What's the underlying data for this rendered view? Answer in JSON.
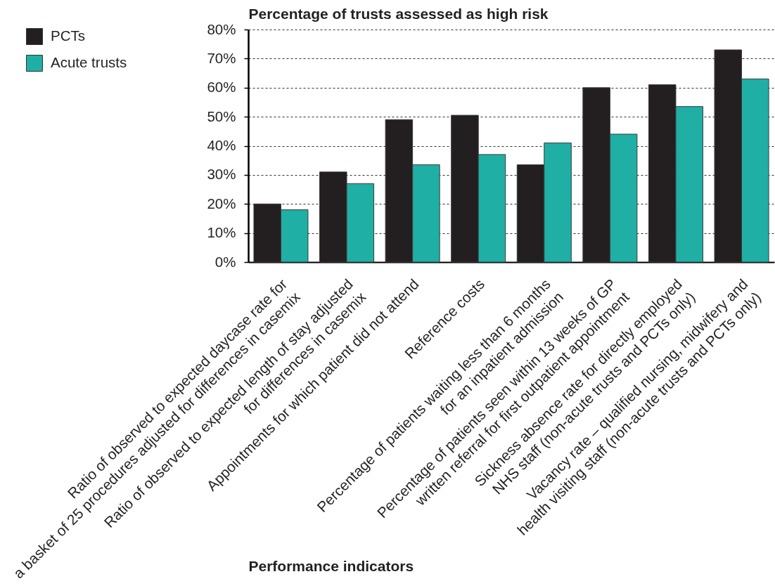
{
  "chart_data": {
    "type": "bar",
    "ylabel": "Percentage of trusts assessed as high risk",
    "xlabel": "Performance indicators",
    "categories": [
      "Ratio of observed to expected daycase rate for\na basket of 25 procedures adjusted for differences in casemix",
      "Ratio of observed to expected length of stay adjusted\nfor differences in casemix",
      "Appointments for which patient did not attend",
      "Reference costs",
      "Percentage of patients waiting less than 6 months\nfor an inpatient admission",
      "Percentage of patients seen within 13 weeks of GP\nwritten referral for first outpatient appointment",
      "Sickness absence rate for directly employed\nNHS staff (non-acute trusts and PCTs only)",
      "Vacancy rate – qualified nursing, midwifery and\nhealth visiting staff (non-acute trusts and PCTs only)"
    ],
    "series": [
      {
        "name": "PCTs",
        "color": "#231f20",
        "values": [
          20,
          31,
          49,
          50.5,
          33.5,
          60,
          61,
          73
        ]
      },
      {
        "name": "Acute trusts",
        "color": "#1fafa5",
        "values": [
          18,
          27,
          33.5,
          37,
          41,
          44,
          53.5,
          63
        ]
      }
    ],
    "ylim": [
      0,
      80
    ],
    "yticks": [
      {
        "value": 0,
        "label": "0%"
      },
      {
        "value": 10,
        "label": "10%"
      },
      {
        "value": 20,
        "label": "20%"
      },
      {
        "value": 30,
        "label": "30%"
      },
      {
        "value": 40,
        "label": "40%"
      },
      {
        "value": 50,
        "label": "50%"
      },
      {
        "value": 60,
        "label": "60%"
      },
      {
        "value": 70,
        "label": "70%"
      },
      {
        "value": 80,
        "label": "80%"
      }
    ],
    "grid": "y",
    "legend": "top left"
  }
}
